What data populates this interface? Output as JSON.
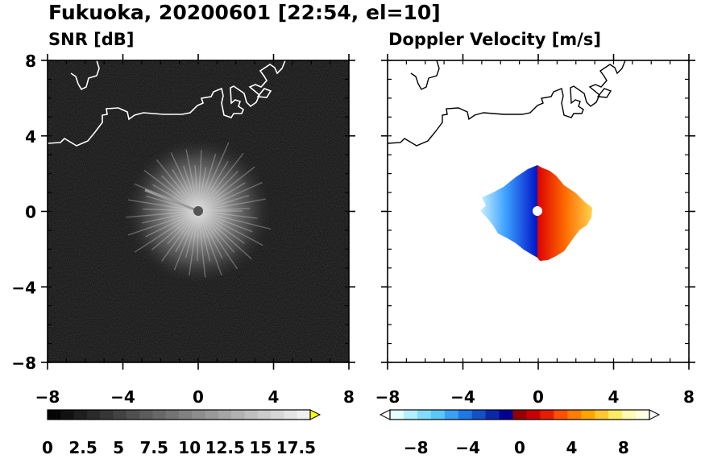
{
  "title": "Fukuoka, 20200601 [22:54, el=10]",
  "chart_data": [
    {
      "type": "heatmap",
      "title": "SNR [dB]",
      "xlim": [
        -8,
        8
      ],
      "ylim": [
        -8,
        8
      ],
      "x_ticks": [
        "−8",
        "−4",
        "0",
        "4",
        "8"
      ],
      "y_ticks": [
        "8",
        "4",
        "0",
        "−4",
        "−8"
      ],
      "colorbar": {
        "min": 0,
        "max": 18.5,
        "extend": "max",
        "tick_labels": [
          "0",
          "2.5",
          "5",
          "7.5",
          "10",
          "12.5",
          "15",
          "17.5"
        ],
        "tick_values": [
          0,
          2.5,
          5,
          7.5,
          10,
          12.5,
          15,
          17.5
        ],
        "colors": [
          "#000000",
          "#f5f5f5"
        ]
      },
      "features": {
        "echo_center": [
          0,
          0
        ],
        "echo_radius_km": 3.8,
        "coastline_color": "#ffffff"
      }
    },
    {
      "type": "heatmap",
      "title": "Doppler Velocity [m/s]",
      "xlim": [
        -8,
        8
      ],
      "ylim": [
        -8,
        8
      ],
      "x_ticks": [
        "−8",
        "−4",
        "0",
        "4",
        "8"
      ],
      "y_ticks": [
        "8",
        "4",
        "0",
        "−4",
        "−8"
      ],
      "colorbar": {
        "min": -10,
        "max": 10,
        "extend": "both",
        "tick_labels": [
          "−8",
          "−4",
          "0",
          "4",
          "8"
        ],
        "tick_values": [
          -8,
          -4,
          0,
          4,
          8
        ],
        "colors": [
          "#e0ffff",
          "#5ac8fa",
          "#1e64dc",
          "#000096",
          "#960000",
          "#ff3c00",
          "#ffa500",
          "#ffff64",
          "#ffffe6"
        ]
      },
      "features": {
        "echo_center": [
          0,
          0
        ],
        "echo_radius_km": 3.2,
        "coastline_color": "#000000"
      }
    }
  ]
}
